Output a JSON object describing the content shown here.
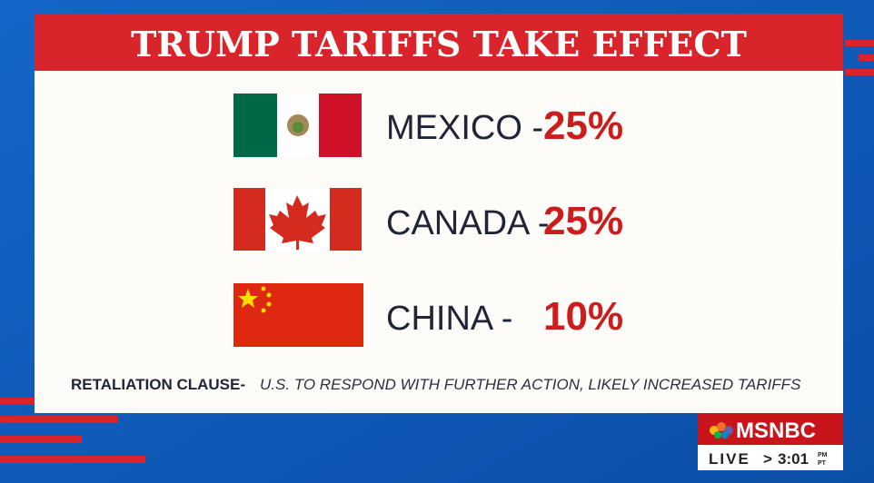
{
  "header": {
    "title": "TRUMP TARIFFS TAKE EFFECT"
  },
  "rows": [
    {
      "country": "MEXICO -",
      "tariff": "25%"
    },
    {
      "country": "CANADA -",
      "tariff": "25%"
    },
    {
      "country": "CHINA -",
      "tariff": "10%"
    }
  ],
  "footer": {
    "label": "RETALIATION CLAUSE-",
    "text": "U.S. TO RESPOND WITH FURTHER ACTION, LIKELY INCREASED TARIFFS"
  },
  "bug": {
    "network": "MSNBC",
    "live": "LIVE",
    "arrow": ">",
    "time": "3:01",
    "ampm": "PM",
    "zone": "PT"
  }
}
